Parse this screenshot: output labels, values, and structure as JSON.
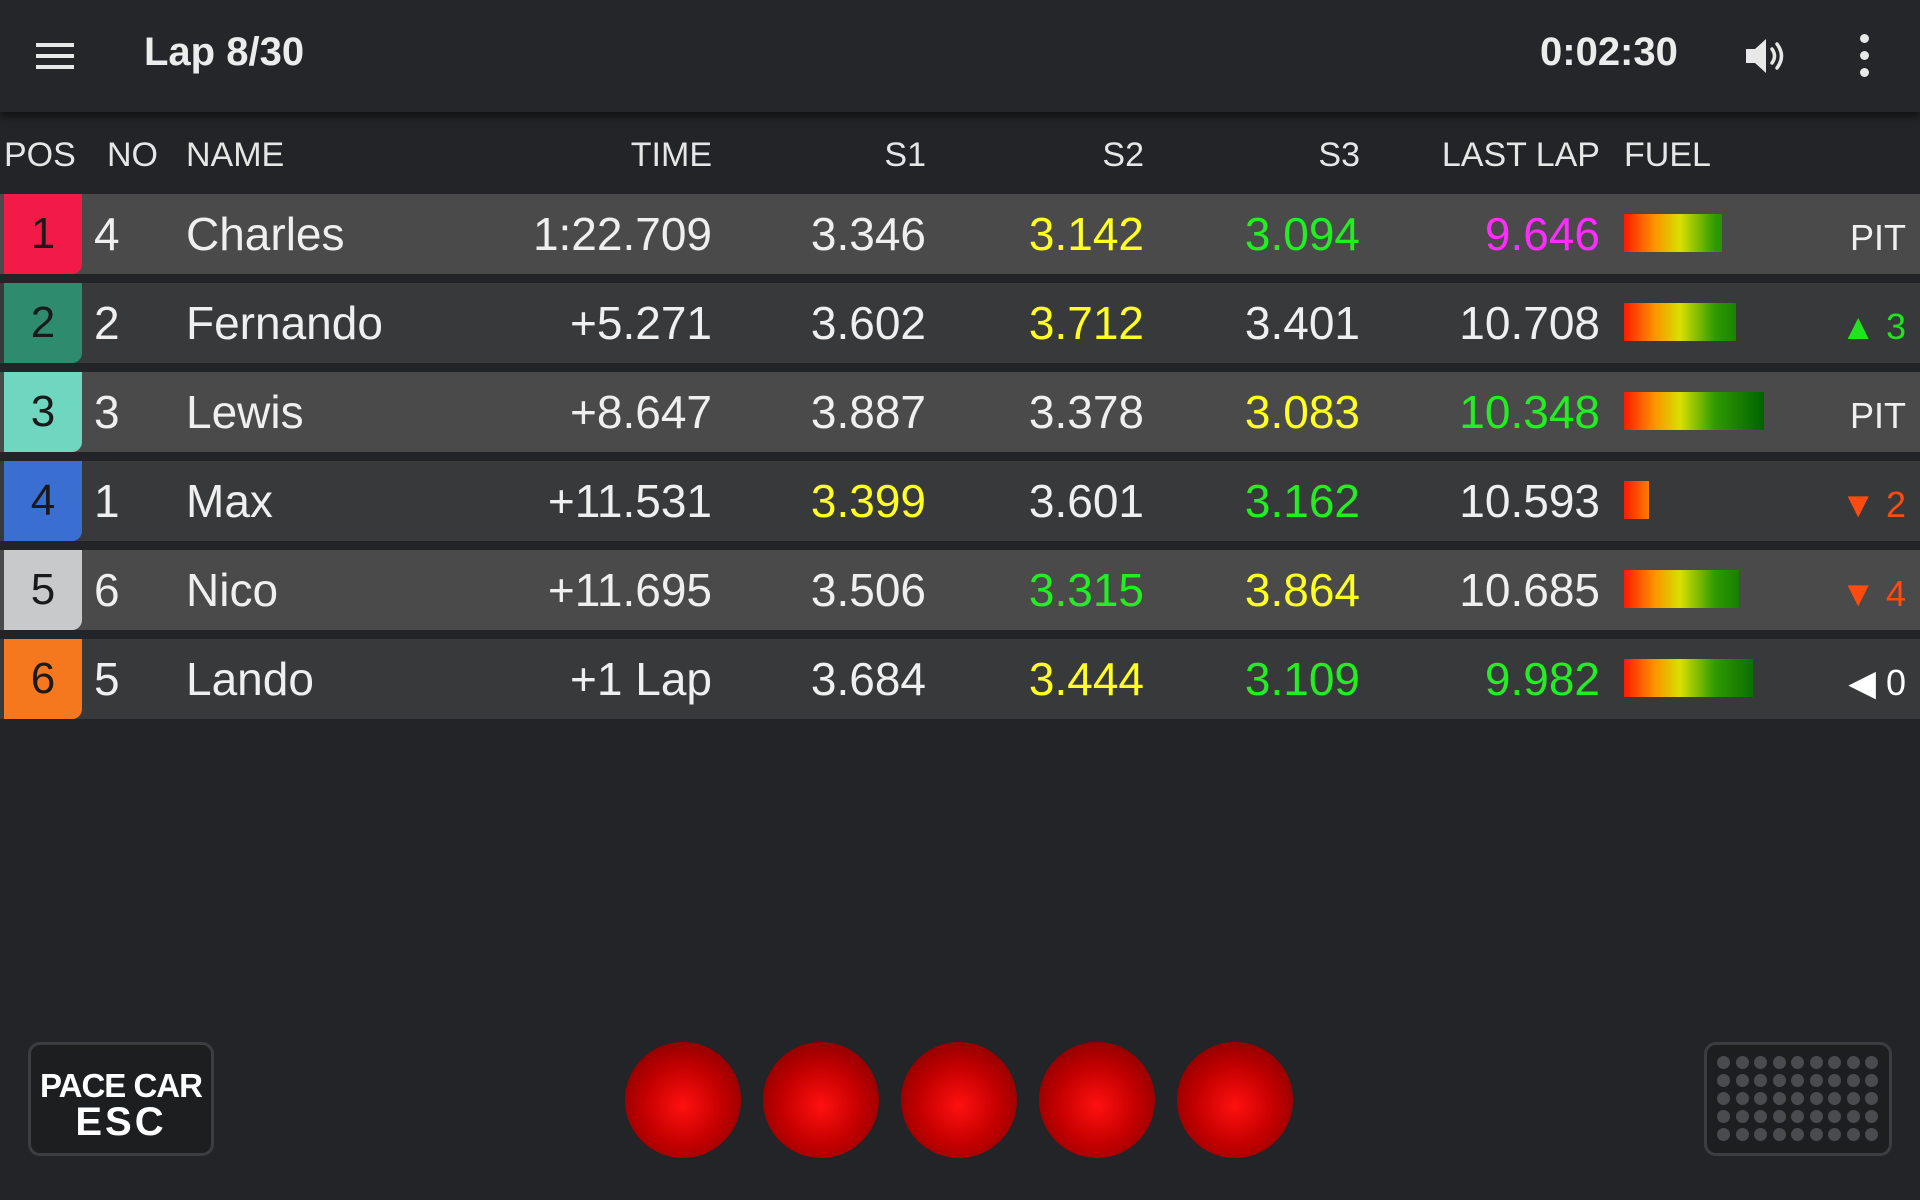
{
  "header": {
    "lap": "Lap 8/30",
    "clock": "0:02:30",
    "icons": [
      "menu-icon",
      "volume-icon",
      "more-vert-icon"
    ]
  },
  "columns": {
    "pos": "POS",
    "no": "NO",
    "name": "NAME",
    "time": "TIME",
    "s1": "S1",
    "s2": "S2",
    "s3": "S3",
    "last": "LAST LAP",
    "fuel": "FUEL"
  },
  "colors": {
    "purple": "#ff2cff",
    "green": "#22ee22",
    "yellow": "#ffff22",
    "white": "#efefef",
    "up": "#1ee51e",
    "down": "#ff4a10",
    "neutral": "#ffffff"
  },
  "rows": [
    {
      "pos": "1",
      "pos_color": "#f21a47",
      "pos_text": "#1a1a1a",
      "no": "4",
      "name": "Charles",
      "time": "1:22.709",
      "s1": "3.346",
      "s1c": "white",
      "s2": "3.142",
      "s2c": "yellow",
      "s3": "3.094",
      "s3c": "green",
      "last": "9.646",
      "lastc": "purple",
      "fuel": 0.7,
      "status": "PIT",
      "statusc": "white"
    },
    {
      "pos": "2",
      "pos_color": "#2e8b6e",
      "pos_text": "#1a1a1a",
      "no": "2",
      "name": "Fernando",
      "time": "+5.271",
      "s1": "3.602",
      "s1c": "white",
      "s2": "3.712",
      "s2c": "yellow",
      "s3": "3.401",
      "s3c": "white",
      "last": "10.708",
      "lastc": "white",
      "fuel": 0.8,
      "status": "▲ 3",
      "statusc": "up"
    },
    {
      "pos": "3",
      "pos_color": "#6fd6c0",
      "pos_text": "#1a1a1a",
      "no": "3",
      "name": "Lewis",
      "time": "+8.647",
      "s1": "3.887",
      "s1c": "white",
      "s2": "3.378",
      "s2c": "white",
      "s3": "3.083",
      "s3c": "yellow",
      "last": "10.348",
      "lastc": "green",
      "fuel": 1.0,
      "status": "PIT",
      "statusc": "white"
    },
    {
      "pos": "4",
      "pos_color": "#3a6fd1",
      "pos_text": "#1a1a1a",
      "no": "1",
      "name": "Max",
      "time": "+11.531",
      "s1": "3.399",
      "s1c": "yellow",
      "s2": "3.601",
      "s2c": "white",
      "s3": "3.162",
      "s3c": "green",
      "last": "10.593",
      "lastc": "white",
      "fuel": 0.18,
      "status": "▼ 2",
      "statusc": "down"
    },
    {
      "pos": "5",
      "pos_color": "#c8c9cb",
      "pos_text": "#1a1a1a",
      "no": "6",
      "name": "Nico",
      "time": "+11.695",
      "s1": "3.506",
      "s1c": "white",
      "s2": "3.315",
      "s2c": "green",
      "s3": "3.864",
      "s3c": "yellow",
      "last": "10.685",
      "lastc": "white",
      "fuel": 0.82,
      "status": "▼ 4",
      "statusc": "down"
    },
    {
      "pos": "6",
      "pos_color": "#f5781f",
      "pos_text": "#1a1a1a",
      "no": "5",
      "name": "Lando",
      "time": "+1 Lap",
      "s1": "3.684",
      "s1c": "white",
      "s2": "3.444",
      "s2c": "yellow",
      "s3": "3.109",
      "s3c": "green",
      "last": "9.982",
      "lastc": "green",
      "fuel": 0.92,
      "status": "◀ 0",
      "statusc": "neutral"
    }
  ],
  "footer": {
    "pace_line1": "PACE CAR",
    "pace_line2": "ESC",
    "start_lights": 5
  }
}
